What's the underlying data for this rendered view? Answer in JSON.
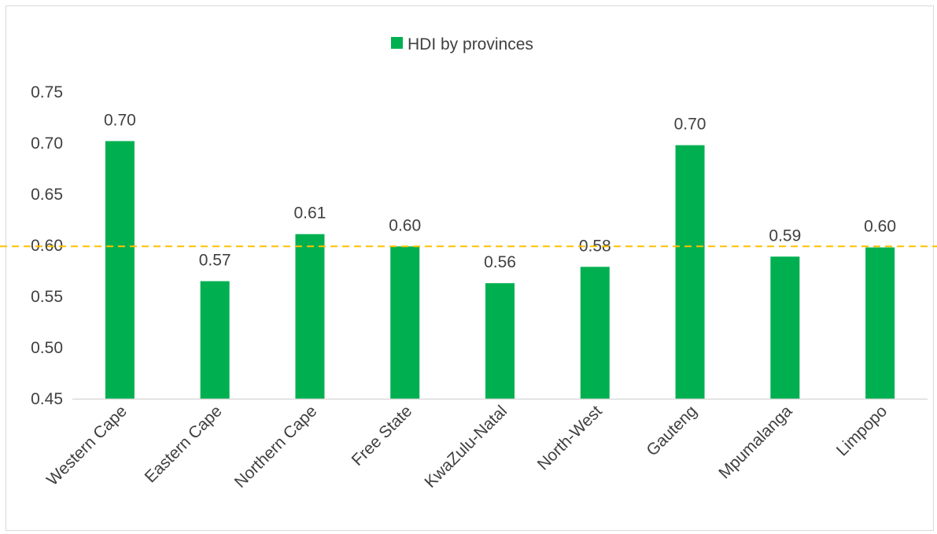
{
  "chart_data": {
    "type": "bar",
    "categories": [
      "Western Cape",
      "Eastern Cape",
      "Northern Cape",
      "Free State",
      "KwaZulu-Natal",
      "North-West",
      "Gauteng",
      "Mpumalanga",
      "Limpopo"
    ],
    "series": [
      {
        "name": "HDI by provinces",
        "values": [
          0.702,
          0.565,
          0.611,
          0.599,
          0.563,
          0.579,
          0.698,
          0.589,
          0.598
        ],
        "labels": [
          "0.70",
          "0.57",
          "0.61",
          "0.60",
          "0.56",
          "0.58",
          "0.70",
          "0.59",
          "0.60"
        ],
        "color": "#00b050"
      }
    ],
    "reference_line": {
      "value": 0.599,
      "color": "#ffc000",
      "style": "dashed"
    },
    "y_ticks": [
      "0.45",
      "0.50",
      "0.55",
      "0.60",
      "0.65",
      "0.70",
      "0.75"
    ],
    "ylim": [
      0.45,
      0.75
    ],
    "title": "",
    "xlabel": "",
    "ylabel": "",
    "grid": false,
    "legend": "top-center"
  }
}
